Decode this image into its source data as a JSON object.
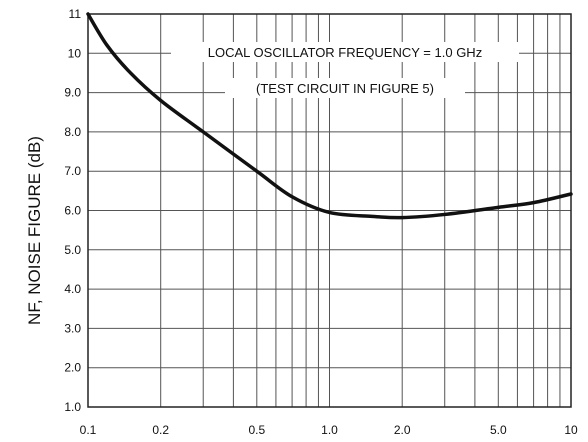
{
  "chart_data": {
    "type": "line",
    "title": "",
    "xlabel": "",
    "ylabel": "NF, NOISE FIGURE (dB)",
    "xscale": "log",
    "xlim": [
      0.1,
      10
    ],
    "ylim": [
      1.0,
      11.0
    ],
    "x_tick_labels": [
      "0.1",
      "0.2",
      "0.5",
      "1.0",
      "2.0",
      "5.0",
      "10"
    ],
    "x_ticks": [
      0.1,
      0.2,
      0.5,
      1.0,
      2.0,
      5.0,
      10
    ],
    "y_tick_labels": [
      "1.0",
      "2.0",
      "3.0",
      "4.0",
      "5.0",
      "6.0",
      "7.0",
      "8.0",
      "9.0",
      "10",
      "11"
    ],
    "y_ticks": [
      1,
      2,
      3,
      4,
      5,
      6,
      7,
      8,
      9,
      10,
      11
    ],
    "x_minor_gridlines": [
      0.3,
      0.4,
      0.6,
      0.7,
      0.8,
      0.9,
      3,
      4,
      6,
      7,
      8,
      9
    ],
    "grid": true,
    "annotations": [
      "LOCAL  OSCILLATOR FREQUENCY = 1.0 GHz",
      "(TEST CIRCUIT IN FIGURE 5)"
    ],
    "series": [
      {
        "color": "#111111",
        "x": [
          0.1,
          0.12,
          0.15,
          0.2,
          0.3,
          0.5,
          0.7,
          1.0,
          1.5,
          2.0,
          3.0,
          5.0,
          7.0,
          10
        ],
        "y": [
          11.0,
          10.2,
          9.5,
          8.8,
          8.0,
          7.0,
          6.35,
          5.95,
          5.85,
          5.82,
          5.9,
          6.08,
          6.2,
          6.42
        ]
      }
    ]
  }
}
